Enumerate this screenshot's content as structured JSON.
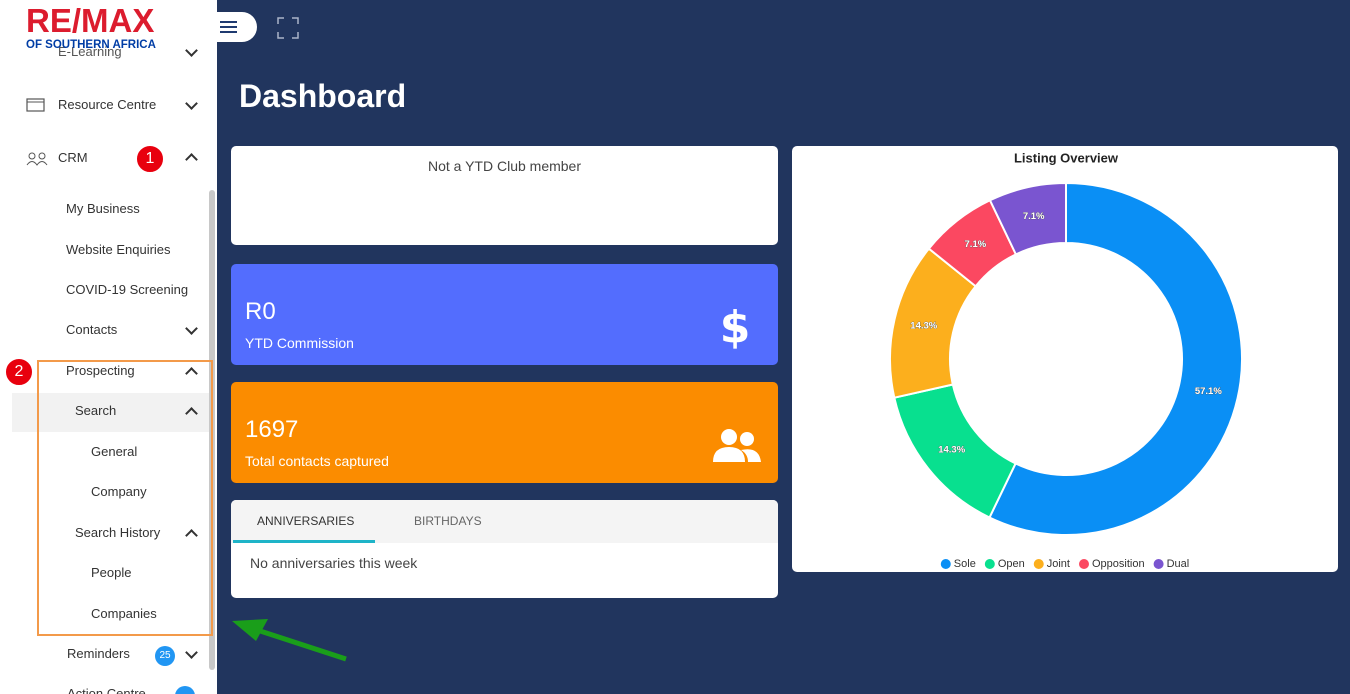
{
  "logo": {
    "brand": "RE/MAX",
    "region": "OF SOUTHERN AFRICA"
  },
  "sidebar": {
    "items": [
      "E-Learning",
      "Resource Centre",
      "CRM",
      "My Business",
      "Website Enquiries",
      "COVID-19 Screening",
      "Contacts",
      "Prospecting",
      "Search",
      "General",
      "Company",
      "Search History",
      "People",
      "Companies",
      "Reminders",
      "Action Centre"
    ],
    "reminders_badge": "25",
    "markers": [
      "1",
      "2"
    ]
  },
  "page": {
    "title": "Dashboard"
  },
  "cards": {
    "ytd_club": "Not a YTD Club member",
    "commission_value": "R0",
    "commission_label": "YTD Commission",
    "contacts_value": 1697,
    "contacts_label": "Total contacts captured"
  },
  "tabs": {
    "labels": [
      "ANNIVERSARIES",
      "BIRTHDAYS"
    ],
    "message": "No anniversaries this week"
  },
  "chart_data": {
    "type": "pie",
    "title": "Listing Overview",
    "categories": [
      "Sole",
      "Open",
      "Joint",
      "Opposition",
      "Dual"
    ],
    "values": [
      57.1,
      14.3,
      14.3,
      7.1,
      7.1
    ],
    "value_labels": [
      "57.1%",
      "14.3%",
      "14.3%",
      "7.1%",
      "7.1%"
    ],
    "colors": [
      "#0a8ff5",
      "#08e08f",
      "#fcaf1d",
      "#fb4861",
      "#7a55d0"
    ],
    "legend": "bottom"
  }
}
